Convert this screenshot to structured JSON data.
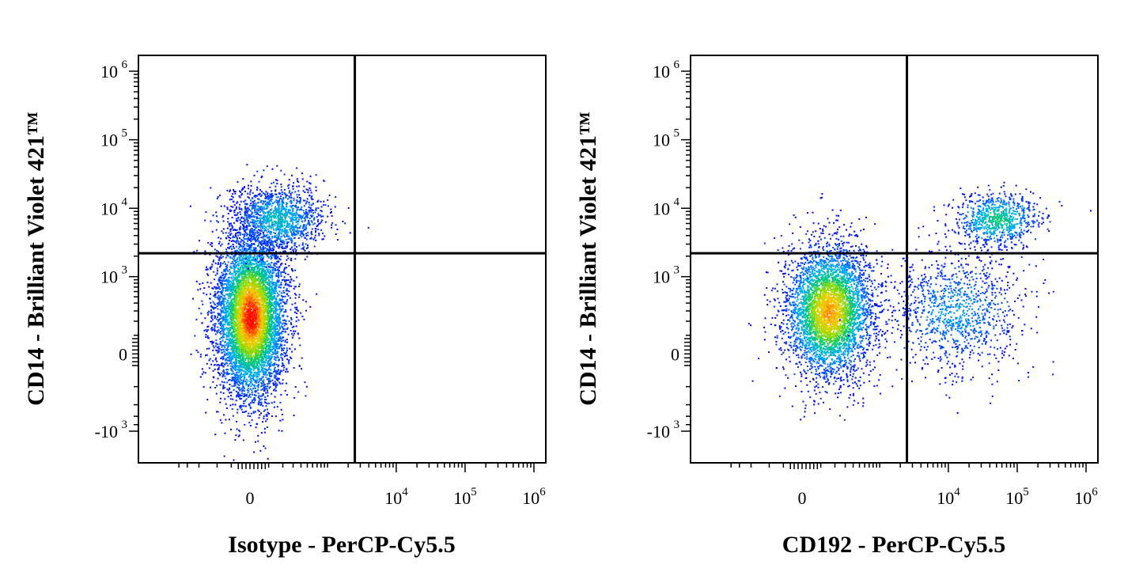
{
  "chart_data": [
    {
      "type": "scatter",
      "xlabel": "Isotype - PerCP-Cy5.5",
      "ylabel": "CD14 - Brilliant Violet 421™",
      "x_scale": "biexponential",
      "y_scale": "biexponential",
      "x_ticks": [
        {
          "base": "0",
          "exp": ""
        },
        {
          "base": "10",
          "exp": "4"
        },
        {
          "base": "10",
          "exp": "5"
        },
        {
          "base": "10",
          "exp": "6"
        }
      ],
      "y_ticks": [
        {
          "base": "-10",
          "exp": "3"
        },
        {
          "base": "0",
          "exp": ""
        },
        {
          "base": "10",
          "exp": "3"
        },
        {
          "base": "10",
          "exp": "4"
        },
        {
          "base": "10",
          "exp": "5"
        },
        {
          "base": "10",
          "exp": "6"
        }
      ],
      "quadrant_gate": {
        "x": 2500,
        "y": 2200
      },
      "populations": [
        {
          "x_center": 0,
          "y_center": 250,
          "count": 6500
        },
        {
          "x_center": 150,
          "y_center": 7000,
          "count": 1300
        }
      ]
    },
    {
      "type": "scatter",
      "xlabel": "CD192 - PerCP-Cy5.5",
      "ylabel": "CD14 - Brilliant Violet 421™",
      "x_scale": "biexponential",
      "y_scale": "biexponential",
      "x_ticks": [
        {
          "base": "0",
          "exp": ""
        },
        {
          "base": "10",
          "exp": "4"
        },
        {
          "base": "10",
          "exp": "5"
        },
        {
          "base": "10",
          "exp": "6"
        }
      ],
      "y_ticks": [
        {
          "base": "-10",
          "exp": "3"
        },
        {
          "base": "0",
          "exp": ""
        },
        {
          "base": "10",
          "exp": "3"
        },
        {
          "base": "10",
          "exp": "4"
        },
        {
          "base": "10",
          "exp": "5"
        },
        {
          "base": "10",
          "exp": "6"
        }
      ],
      "quadrant_gate": {
        "x": 2500,
        "y": 2200
      },
      "populations": [
        {
          "x_center": 150,
          "y_center": 300,
          "count": 4200
        },
        {
          "x_center": 12000,
          "y_center": 300,
          "count": 1100
        },
        {
          "x_center": 50000,
          "y_center": 7000,
          "count": 800
        }
      ]
    }
  ]
}
